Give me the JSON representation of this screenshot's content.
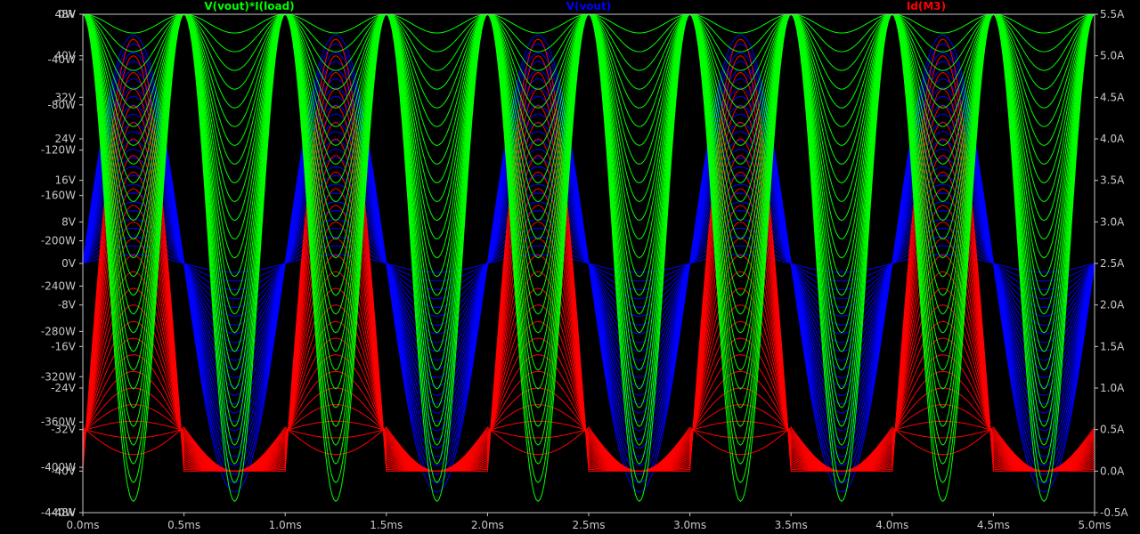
{
  "chart_data": {
    "type": "line",
    "background": "#000000",
    "axis_color": "#c8c8c8",
    "x_axis": {
      "unit": "ms",
      "range": [
        0,
        5
      ],
      "ticks": [
        "0.0ms",
        "0.5ms",
        "1.0ms",
        "1.5ms",
        "2.0ms",
        "2.5ms",
        "3.0ms",
        "3.5ms",
        "4.0ms",
        "4.5ms",
        "5.0ms"
      ]
    },
    "y_axis_left_power": {
      "unit": "W",
      "range": [
        -440,
        0
      ],
      "ticks": [
        "0W",
        "-40W",
        "-80W",
        "-120W",
        "-160W",
        "-200W",
        "-240W",
        "-280W",
        "-320W",
        "-360W",
        "-400W",
        "-440W"
      ]
    },
    "y_axis_left_voltage": {
      "unit": "V",
      "range": [
        -48,
        48
      ],
      "ticks": [
        "48V",
        "40V",
        "32V",
        "24V",
        "16V",
        "8V",
        "0V",
        "-8V",
        "-16V",
        "-24V",
        "-32V",
        "-40V",
        "-48V"
      ]
    },
    "y_axis_right_current": {
      "unit": "A",
      "range": [
        -0.5,
        5.5
      ],
      "ticks": [
        "5.5A",
        "5.0A",
        "4.5A",
        "4.0A",
        "3.5A",
        "3.0A",
        "2.5A",
        "2.0A",
        "1.5A",
        "1.0A",
        "0.5A",
        "0.0A",
        "-0.5A"
      ]
    },
    "series": [
      {
        "name": "V(vout)*I(load)",
        "color": "#00ff00",
        "axis": "power",
        "period_ms": 0.5,
        "peak_min_W": -430,
        "step_count": 26
      },
      {
        "name": "V(vout)",
        "color": "#0000ff",
        "axis": "voltage",
        "period_ms": 1.0,
        "amplitude_max_V": 44,
        "step_count": 26
      },
      {
        "name": "Id(M3)",
        "color": "#ff0000",
        "axis": "current",
        "period_ms": 1.0,
        "peak_max_A": 5.2,
        "clip_min_A": 0.0,
        "step_count": 26
      }
    ]
  }
}
